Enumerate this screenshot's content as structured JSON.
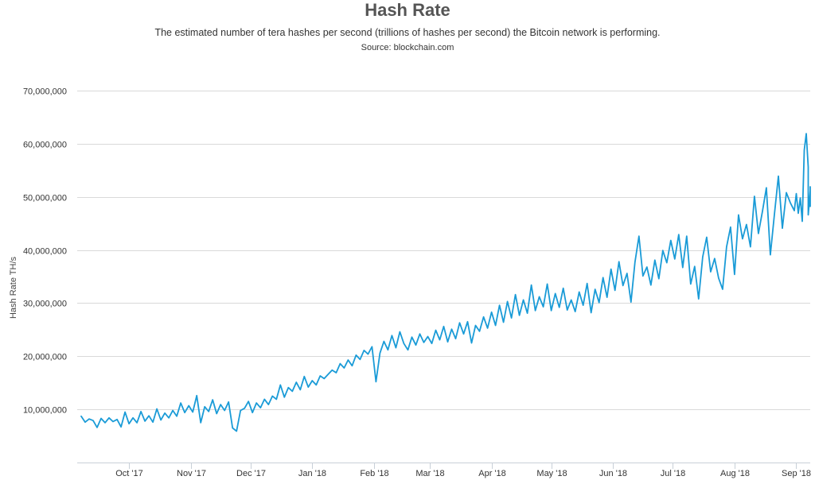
{
  "header": {
    "title": "Hash Rate",
    "subtitle": "The estimated number of tera hashes per second (trillions of hashes per second) the Bitcoin network is performing.",
    "source": "Source: blockchain.com"
  },
  "colors": {
    "line": "#1a9bd7",
    "grid": "#d9d9d9",
    "axis": "#c8d0d8"
  },
  "chart_data": {
    "type": "line",
    "title": "Hash Rate",
    "subtitle": "The estimated number of tera hashes per second (trillions of hashes per second) the Bitcoin network is performing.",
    "ylabel": "Hash Rate TH/s",
    "xlabel": "",
    "ylim": [
      0,
      70000000
    ],
    "xlim": [
      "2017-09-05",
      "2018-09-08"
    ],
    "grid": true,
    "legend": "none",
    "y_ticks": [
      {
        "value": 10000000,
        "label": "10,000,000"
      },
      {
        "value": 20000000,
        "label": "20,000,000"
      },
      {
        "value": 30000000,
        "label": "30,000,000"
      },
      {
        "value": 40000000,
        "label": "40,000,000"
      },
      {
        "value": 50000000,
        "label": "50,000,000"
      },
      {
        "value": 60000000,
        "label": "60,000,000"
      },
      {
        "value": 70000000,
        "label": "70,000,000"
      }
    ],
    "x_ticks": [
      {
        "date": "2017-10-01",
        "label": "Oct '17"
      },
      {
        "date": "2017-11-01",
        "label": "Nov '17"
      },
      {
        "date": "2017-12-01",
        "label": "Dec '17"
      },
      {
        "date": "2018-01-01",
        "label": "Jan '18"
      },
      {
        "date": "2018-02-01",
        "label": "Feb '18"
      },
      {
        "date": "2018-03-01",
        "label": "Mar '18"
      },
      {
        "date": "2018-04-01",
        "label": "Apr '18"
      },
      {
        "date": "2018-05-01",
        "label": "May '18"
      },
      {
        "date": "2018-06-01",
        "label": "Jun '18"
      },
      {
        "date": "2018-07-01",
        "label": "Jul '18"
      },
      {
        "date": "2018-08-01",
        "label": "Aug '18"
      },
      {
        "date": "2018-09-01",
        "label": "Sep '18"
      }
    ],
    "series": [
      {
        "values": [
          [
            "2017-09-07",
            8700000
          ],
          [
            "2017-09-09",
            7600000
          ],
          [
            "2017-09-11",
            8200000
          ],
          [
            "2017-09-13",
            7900000
          ],
          [
            "2017-09-15",
            6600000
          ],
          [
            "2017-09-17",
            8300000
          ],
          [
            "2017-09-19",
            7500000
          ],
          [
            "2017-09-21",
            8400000
          ],
          [
            "2017-09-23",
            7700000
          ],
          [
            "2017-09-25",
            8100000
          ],
          [
            "2017-09-27",
            6700000
          ],
          [
            "2017-09-29",
            9500000
          ],
          [
            "2017-10-01",
            7300000
          ],
          [
            "2017-10-03",
            8400000
          ],
          [
            "2017-10-05",
            7500000
          ],
          [
            "2017-10-07",
            9600000
          ],
          [
            "2017-10-09",
            7800000
          ],
          [
            "2017-10-11",
            8800000
          ],
          [
            "2017-10-13",
            7600000
          ],
          [
            "2017-10-15",
            10100000
          ],
          [
            "2017-10-17",
            8000000
          ],
          [
            "2017-10-19",
            9300000
          ],
          [
            "2017-10-21",
            8400000
          ],
          [
            "2017-10-23",
            9800000
          ],
          [
            "2017-10-25",
            8700000
          ],
          [
            "2017-10-27",
            11200000
          ],
          [
            "2017-10-29",
            9400000
          ],
          [
            "2017-10-31",
            10700000
          ],
          [
            "2017-11-02",
            9500000
          ],
          [
            "2017-11-04",
            12600000
          ],
          [
            "2017-11-06",
            7500000
          ],
          [
            "2017-11-08",
            10500000
          ],
          [
            "2017-11-10",
            9600000
          ],
          [
            "2017-11-12",
            11800000
          ],
          [
            "2017-11-14",
            9200000
          ],
          [
            "2017-11-16",
            10900000
          ],
          [
            "2017-11-18",
            9800000
          ],
          [
            "2017-11-20",
            11400000
          ],
          [
            "2017-11-22",
            6500000
          ],
          [
            "2017-11-24",
            5900000
          ],
          [
            "2017-11-26",
            9800000
          ],
          [
            "2017-11-28",
            10200000
          ],
          [
            "2017-11-30",
            11500000
          ],
          [
            "2017-12-02",
            9400000
          ],
          [
            "2017-12-04",
            11200000
          ],
          [
            "2017-12-06",
            10300000
          ],
          [
            "2017-12-08",
            11900000
          ],
          [
            "2017-12-10",
            10900000
          ],
          [
            "2017-12-12",
            12500000
          ],
          [
            "2017-12-14",
            11900000
          ],
          [
            "2017-12-16",
            14600000
          ],
          [
            "2017-12-18",
            12300000
          ],
          [
            "2017-12-20",
            14100000
          ],
          [
            "2017-12-22",
            13400000
          ],
          [
            "2017-12-24",
            15100000
          ],
          [
            "2017-12-26",
            13700000
          ],
          [
            "2017-12-28",
            16200000
          ],
          [
            "2017-12-30",
            14200000
          ],
          [
            "2018-01-01",
            15400000
          ],
          [
            "2018-01-03",
            14600000
          ],
          [
            "2018-01-05",
            16300000
          ],
          [
            "2018-01-07",
            15800000
          ],
          [
            "2018-01-09",
            16600000
          ],
          [
            "2018-01-11",
            17400000
          ],
          [
            "2018-01-13",
            16900000
          ],
          [
            "2018-01-15",
            18600000
          ],
          [
            "2018-01-17",
            17800000
          ],
          [
            "2018-01-19",
            19300000
          ],
          [
            "2018-01-21",
            18200000
          ],
          [
            "2018-01-23",
            20200000
          ],
          [
            "2018-01-25",
            19400000
          ],
          [
            "2018-01-27",
            21100000
          ],
          [
            "2018-01-29",
            20400000
          ],
          [
            "2018-01-31",
            21800000
          ],
          [
            "2018-02-02",
            15200000
          ],
          [
            "2018-02-04",
            20600000
          ],
          [
            "2018-02-06",
            22800000
          ],
          [
            "2018-02-08",
            21200000
          ],
          [
            "2018-02-10",
            23900000
          ],
          [
            "2018-02-12",
            21600000
          ],
          [
            "2018-02-14",
            24600000
          ],
          [
            "2018-02-16",
            22400000
          ],
          [
            "2018-02-18",
            21200000
          ],
          [
            "2018-02-20",
            23600000
          ],
          [
            "2018-02-22",
            22100000
          ],
          [
            "2018-02-24",
            24200000
          ],
          [
            "2018-02-26",
            22600000
          ],
          [
            "2018-02-28",
            23700000
          ],
          [
            "2018-03-02",
            22400000
          ],
          [
            "2018-03-04",
            24900000
          ],
          [
            "2018-03-06",
            23100000
          ],
          [
            "2018-03-08",
            25600000
          ],
          [
            "2018-03-10",
            22700000
          ],
          [
            "2018-03-12",
            25100000
          ],
          [
            "2018-03-14",
            23300000
          ],
          [
            "2018-03-16",
            26300000
          ],
          [
            "2018-03-18",
            24200000
          ],
          [
            "2018-03-20",
            26500000
          ],
          [
            "2018-03-22",
            22500000
          ],
          [
            "2018-03-24",
            25800000
          ],
          [
            "2018-03-26",
            24700000
          ],
          [
            "2018-03-28",
            27400000
          ],
          [
            "2018-03-30",
            25300000
          ],
          [
            "2018-04-01",
            28300000
          ],
          [
            "2018-04-03",
            25800000
          ],
          [
            "2018-04-05",
            29600000
          ],
          [
            "2018-04-07",
            26400000
          ],
          [
            "2018-04-09",
            30300000
          ],
          [
            "2018-04-11",
            27200000
          ],
          [
            "2018-04-13",
            31600000
          ],
          [
            "2018-04-15",
            27700000
          ],
          [
            "2018-04-17",
            30600000
          ],
          [
            "2018-04-19",
            28100000
          ],
          [
            "2018-04-21",
            33400000
          ],
          [
            "2018-04-23",
            28600000
          ],
          [
            "2018-04-25",
            31200000
          ],
          [
            "2018-04-27",
            29300000
          ],
          [
            "2018-04-29",
            33600000
          ],
          [
            "2018-05-01",
            28600000
          ],
          [
            "2018-05-03",
            31800000
          ],
          [
            "2018-05-05",
            29200000
          ],
          [
            "2018-05-07",
            32800000
          ],
          [
            "2018-05-09",
            28700000
          ],
          [
            "2018-05-11",
            30600000
          ],
          [
            "2018-05-13",
            28400000
          ],
          [
            "2018-05-15",
            32100000
          ],
          [
            "2018-05-17",
            29600000
          ],
          [
            "2018-05-19",
            33700000
          ],
          [
            "2018-05-21",
            28200000
          ],
          [
            "2018-05-23",
            32600000
          ],
          [
            "2018-05-25",
            30100000
          ],
          [
            "2018-05-27",
            34800000
          ],
          [
            "2018-05-29",
            31100000
          ],
          [
            "2018-05-31",
            36400000
          ],
          [
            "2018-06-02",
            32400000
          ],
          [
            "2018-06-04",
            37800000
          ],
          [
            "2018-06-06",
            33300000
          ],
          [
            "2018-06-08",
            35600000
          ],
          [
            "2018-06-10",
            30200000
          ],
          [
            "2018-06-12",
            37700000
          ],
          [
            "2018-06-14",
            42600000
          ],
          [
            "2018-06-16",
            35100000
          ],
          [
            "2018-06-18",
            36800000
          ],
          [
            "2018-06-20",
            33400000
          ],
          [
            "2018-06-22",
            38100000
          ],
          [
            "2018-06-24",
            34600000
          ],
          [
            "2018-06-26",
            39900000
          ],
          [
            "2018-06-28",
            37600000
          ],
          [
            "2018-06-30",
            41800000
          ],
          [
            "2018-07-02",
            38300000
          ],
          [
            "2018-07-04",
            42900000
          ],
          [
            "2018-07-06",
            36700000
          ],
          [
            "2018-07-08",
            42600000
          ],
          [
            "2018-07-10",
            33600000
          ],
          [
            "2018-07-12",
            36900000
          ],
          [
            "2018-07-14",
            30800000
          ],
          [
            "2018-07-16",
            38700000
          ],
          [
            "2018-07-18",
            42400000
          ],
          [
            "2018-07-20",
            35900000
          ],
          [
            "2018-07-22",
            38400000
          ],
          [
            "2018-07-24",
            34700000
          ],
          [
            "2018-07-26",
            32600000
          ],
          [
            "2018-07-28",
            40600000
          ],
          [
            "2018-07-30",
            44300000
          ],
          [
            "2018-08-01",
            35400000
          ],
          [
            "2018-08-03",
            46600000
          ],
          [
            "2018-08-05",
            42100000
          ],
          [
            "2018-08-07",
            44800000
          ],
          [
            "2018-08-09",
            40600000
          ],
          [
            "2018-08-11",
            50100000
          ],
          [
            "2018-08-13",
            43100000
          ],
          [
            "2018-08-15",
            47200000
          ],
          [
            "2018-08-17",
            51700000
          ],
          [
            "2018-08-19",
            39100000
          ],
          [
            "2018-08-21",
            46700000
          ],
          [
            "2018-08-23",
            53900000
          ],
          [
            "2018-08-25",
            44100000
          ],
          [
            "2018-08-27",
            50800000
          ],
          [
            "2018-08-29",
            48900000
          ],
          [
            "2018-08-31",
            47400000
          ],
          [
            "2018-09-01",
            50600000
          ],
          [
            "2018-09-02",
            46900000
          ],
          [
            "2018-09-03",
            49800000
          ],
          [
            "2018-09-04",
            45400000
          ],
          [
            "2018-09-05",
            58800000
          ],
          [
            "2018-09-06",
            61900000
          ],
          [
            "2018-09-07",
            55600000
          ],
          [
            "2018-09-07",
            46600000
          ],
          [
            "2018-09-08",
            51200000
          ],
          [
            "2018-09-08",
            51900000
          ],
          [
            "2018-09-08",
            50800000
          ],
          [
            "2018-09-08",
            48400000
          ],
          [
            "2018-09-08",
            48200000
          ]
        ]
      }
    ]
  }
}
